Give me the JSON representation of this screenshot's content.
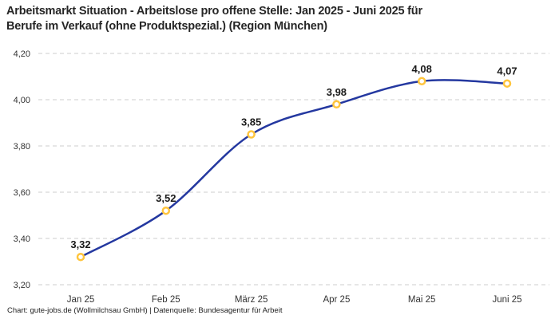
{
  "header": {
    "title_line1": "Arbeitsmarkt Situation - Arbeitslose pro offene Stelle: Jan 2025 - Juni 2025 für",
    "title_line2": "Berufe im Verkauf (ohne Produktspezial.) (Region München)"
  },
  "footer": {
    "credit": "Chart: gute-jobs.de (Wollmilchsau GmbH) | Datenquelle: Bundesagentur für Arbeit"
  },
  "chart_data": {
    "type": "line",
    "title": "Arbeitsmarkt Situation - Arbeitslose pro offene Stelle: Jan 2025 - Juni 2025 für Berufe im Verkauf (ohne Produktspezial.) (Region München)",
    "categories": [
      "Jan 25",
      "Feb 25",
      "März 25",
      "Apr 25",
      "Mai 25",
      "Juni 25"
    ],
    "series": [
      {
        "name": "Arbeitslose pro offene Stelle",
        "values": [
          3.32,
          3.52,
          3.85,
          3.98,
          4.08,
          4.07
        ]
      }
    ],
    "value_labels": [
      "3,32",
      "3,52",
      "3,85",
      "3,98",
      "4,08",
      "4,07"
    ],
    "y_tick_labels": [
      "4,20",
      "4,00",
      "3,80",
      "3,60",
      "3,40",
      "3,20"
    ],
    "y_tick_values": [
      4.2,
      4.0,
      3.8,
      3.6,
      3.4,
      3.2
    ],
    "ylim": [
      3.2,
      4.2
    ],
    "xlabel": "",
    "ylabel": "",
    "grid": "horizontal-dashed",
    "legend": "none",
    "line_color": "#2438A0",
    "marker_color": "#FFC53D",
    "grid_color": "#CCCCCC",
    "source": "Bundesagentur für Arbeit"
  }
}
